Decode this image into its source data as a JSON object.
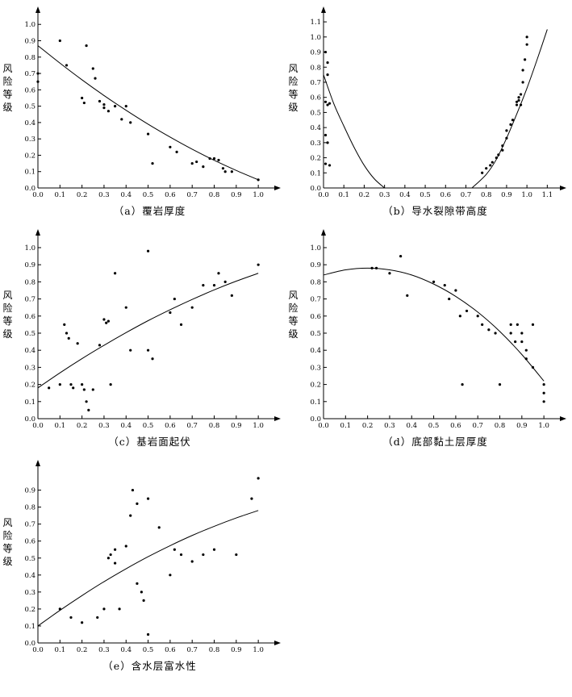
{
  "ticks_01": [
    "0.0",
    "0.1",
    "0.2",
    "0.3",
    "0.4",
    "0.5",
    "0.6",
    "0.7",
    "0.8",
    "0.9",
    "1.0"
  ],
  "chart_data": [
    {
      "type": "scatter",
      "caption": "（a）覆岩厚度",
      "ylabel": "风险等级",
      "x_ticks": [
        "0.0",
        "0.1",
        "0.2",
        "0.3",
        "0.4",
        "0.5",
        "0.6",
        "0.7",
        "0.8",
        "0.9",
        "1.0"
      ],
      "y_ticks": [
        "0.0",
        "0.1",
        "0.2",
        "0.3",
        "0.4",
        "0.5",
        "0.6",
        "0.7",
        "0.8",
        "0.9",
        "1.0"
      ],
      "xlim": [
        0,
        1.08
      ],
      "ylim": [
        0,
        1.08
      ],
      "grid": false,
      "points": [
        [
          0.0,
          0.65
        ],
        [
          0.0,
          0.7
        ],
        [
          0.1,
          0.9
        ],
        [
          0.13,
          0.75
        ],
        [
          0.22,
          0.87
        ],
        [
          0.25,
          0.73
        ],
        [
          0.26,
          0.67
        ],
        [
          0.2,
          0.55
        ],
        [
          0.21,
          0.52
        ],
        [
          0.28,
          0.53
        ],
        [
          0.3,
          0.51
        ],
        [
          0.3,
          0.49
        ],
        [
          0.32,
          0.47
        ],
        [
          0.35,
          0.5
        ],
        [
          0.4,
          0.5
        ],
        [
          0.38,
          0.42
        ],
        [
          0.42,
          0.4
        ],
        [
          0.5,
          0.33
        ],
        [
          0.52,
          0.15
        ],
        [
          0.6,
          0.25
        ],
        [
          0.63,
          0.22
        ],
        [
          0.7,
          0.15
        ],
        [
          0.72,
          0.16
        ],
        [
          0.75,
          0.13
        ],
        [
          0.78,
          0.18
        ],
        [
          0.8,
          0.18
        ],
        [
          0.82,
          0.17
        ],
        [
          0.84,
          0.12
        ],
        [
          0.85,
          0.1
        ],
        [
          0.88,
          0.1
        ],
        [
          1.0,
          0.05
        ]
      ],
      "curves": [
        [
          [
            0,
            0.87
          ],
          [
            0.1,
            0.763
          ],
          [
            0.2,
            0.661
          ],
          [
            0.3,
            0.565
          ],
          [
            0.4,
            0.475
          ],
          [
            0.5,
            0.39
          ],
          [
            0.6,
            0.311
          ],
          [
            0.7,
            0.237
          ],
          [
            0.8,
            0.169
          ],
          [
            0.9,
            0.107
          ],
          [
            1.0,
            0.05
          ]
        ]
      ]
    },
    {
      "type": "scatter",
      "caption": "（b）导水裂隙带高度",
      "ylabel": "风险等级",
      "x_ticks": [
        "0.0",
        "0.1",
        "0.2",
        "0.3",
        "0.4",
        "0.5",
        "0.6",
        "0.7",
        "0.8",
        "0.9",
        "1.0",
        "1.1"
      ],
      "y_ticks": [
        "0.0",
        "0.1",
        "0.2",
        "0.3",
        "0.4",
        "0.5",
        "0.6",
        "0.7",
        "0.8",
        "0.9",
        "1.0",
        "1.1"
      ],
      "xlim": [
        0,
        1.17
      ],
      "ylim": [
        0,
        1.17
      ],
      "grid": false,
      "points": [
        [
          0.01,
          0.9
        ],
        [
          0.02,
          0.83
        ],
        [
          0.02,
          0.75
        ],
        [
          0.01,
          0.57
        ],
        [
          0.02,
          0.55
        ],
        [
          0.03,
          0.56
        ],
        [
          0.01,
          0.35
        ],
        [
          0.02,
          0.3
        ],
        [
          0.01,
          0.16
        ],
        [
          0.03,
          0.15
        ],
        [
          0.78,
          0.1
        ],
        [
          0.8,
          0.13
        ],
        [
          0.82,
          0.15
        ],
        [
          0.83,
          0.17
        ],
        [
          0.85,
          0.2
        ],
        [
          0.86,
          0.22
        ],
        [
          0.88,
          0.25
        ],
        [
          0.88,
          0.28
        ],
        [
          0.9,
          0.33
        ],
        [
          0.9,
          0.38
        ],
        [
          0.92,
          0.42
        ],
        [
          0.93,
          0.45
        ],
        [
          0.95,
          0.55
        ],
        [
          0.95,
          0.57
        ],
        [
          0.96,
          0.58
        ],
        [
          0.96,
          0.6
        ],
        [
          0.97,
          0.55
        ],
        [
          0.97,
          0.62
        ],
        [
          0.98,
          0.7
        ],
        [
          0.98,
          0.78
        ],
        [
          0.99,
          0.85
        ],
        [
          1.0,
          0.95
        ],
        [
          1.0,
          1.0
        ]
      ],
      "curves": [
        [
          [
            0,
            0.75
          ],
          [
            0.05,
            0.56
          ],
          [
            0.1,
            0.41
          ],
          [
            0.15,
            0.27
          ],
          [
            0.2,
            0.15
          ],
          [
            0.25,
            0.06
          ],
          [
            0.3,
            0.0
          ]
        ],
        [
          [
            0.73,
            0.0
          ],
          [
            0.8,
            0.09
          ],
          [
            0.85,
            0.19
          ],
          [
            0.9,
            0.33
          ],
          [
            0.95,
            0.49
          ],
          [
            1.0,
            0.66
          ],
          [
            1.05,
            0.85
          ],
          [
            1.1,
            1.05
          ]
        ]
      ]
    },
    {
      "type": "scatter",
      "caption": "（c）基岩面起伏",
      "ylabel": "风险等级",
      "x_ticks": [
        "0.0",
        "0.1",
        "0.2",
        "0.3",
        "0.4",
        "0.5",
        "0.6",
        "0.7",
        "0.8",
        "0.9",
        "1.0"
      ],
      "y_ticks": [
        "0.0",
        "0.1",
        "0.2",
        "0.3",
        "0.4",
        "0.5",
        "0.6",
        "0.7",
        "0.8",
        "0.9",
        "1.0"
      ],
      "xlim": [
        0,
        1.08
      ],
      "ylim": [
        0,
        1.08
      ],
      "grid": false,
      "points": [
        [
          0.05,
          0.18
        ],
        [
          0.1,
          0.2
        ],
        [
          0.12,
          0.55
        ],
        [
          0.13,
          0.5
        ],
        [
          0.14,
          0.47
        ],
        [
          0.15,
          0.2
        ],
        [
          0.16,
          0.18
        ],
        [
          0.18,
          0.44
        ],
        [
          0.2,
          0.2
        ],
        [
          0.21,
          0.17
        ],
        [
          0.22,
          0.1
        ],
        [
          0.23,
          0.05
        ],
        [
          0.25,
          0.17
        ],
        [
          0.28,
          0.43
        ],
        [
          0.3,
          0.58
        ],
        [
          0.31,
          0.56
        ],
        [
          0.32,
          0.57
        ],
        [
          0.33,
          0.2
        ],
        [
          0.35,
          0.85
        ],
        [
          0.4,
          0.65
        ],
        [
          0.42,
          0.4
        ],
        [
          0.5,
          0.98
        ],
        [
          0.5,
          0.4
        ],
        [
          0.52,
          0.35
        ],
        [
          0.6,
          0.62
        ],
        [
          0.62,
          0.7
        ],
        [
          0.65,
          0.55
        ],
        [
          0.7,
          0.65
        ],
        [
          0.75,
          0.78
        ],
        [
          0.8,
          0.78
        ],
        [
          0.82,
          0.85
        ],
        [
          0.85,
          0.8
        ],
        [
          0.88,
          0.72
        ],
        [
          1.0,
          0.9
        ]
      ],
      "curves": [
        [
          [
            0,
            0.18
          ],
          [
            0.1,
            0.268
          ],
          [
            0.2,
            0.351
          ],
          [
            0.3,
            0.429
          ],
          [
            0.4,
            0.503
          ],
          [
            0.5,
            0.573
          ],
          [
            0.6,
            0.637
          ],
          [
            0.7,
            0.697
          ],
          [
            0.8,
            0.753
          ],
          [
            0.9,
            0.804
          ],
          [
            1.0,
            0.85
          ]
        ]
      ]
    },
    {
      "type": "scatter",
      "caption": "（d）底部黏土层厚度",
      "ylabel": "风险等级",
      "x_ticks": [
        "0.0",
        "0.1",
        "0.2",
        "0.3",
        "0.4",
        "0.5",
        "0.6",
        "0.7",
        "0.8",
        "0.9",
        "1.0"
      ],
      "y_ticks": [
        "0.0",
        "0.1",
        "0.2",
        "0.3",
        "0.4",
        "0.5",
        "0.6",
        "0.7",
        "0.8",
        "0.9",
        "1.0"
      ],
      "xlim": [
        0,
        1.08
      ],
      "ylim": [
        0,
        1.08
      ],
      "grid": false,
      "points": [
        [
          0.22,
          0.88
        ],
        [
          0.24,
          0.88
        ],
        [
          0.3,
          0.85
        ],
        [
          0.35,
          0.95
        ],
        [
          0.38,
          0.72
        ],
        [
          0.5,
          0.8
        ],
        [
          0.55,
          0.78
        ],
        [
          0.57,
          0.7
        ],
        [
          0.6,
          0.75
        ],
        [
          0.62,
          0.6
        ],
        [
          0.63,
          0.2
        ],
        [
          0.65,
          0.63
        ],
        [
          0.7,
          0.6
        ],
        [
          0.72,
          0.55
        ],
        [
          0.75,
          0.52
        ],
        [
          0.78,
          0.5
        ],
        [
          0.8,
          0.2
        ],
        [
          0.85,
          0.55
        ],
        [
          0.85,
          0.5
        ],
        [
          0.87,
          0.45
        ],
        [
          0.88,
          0.55
        ],
        [
          0.9,
          0.5
        ],
        [
          0.9,
          0.45
        ],
        [
          0.92,
          0.4
        ],
        [
          0.92,
          0.35
        ],
        [
          0.95,
          0.55
        ],
        [
          0.95,
          0.3
        ],
        [
          1.0,
          0.2
        ],
        [
          1.0,
          0.15
        ],
        [
          1.0,
          0.1
        ]
      ],
      "curves": [
        [
          [
            0,
            0.84
          ],
          [
            0.1,
            0.87
          ],
          [
            0.2,
            0.88
          ],
          [
            0.3,
            0.87
          ],
          [
            0.4,
            0.84
          ],
          [
            0.5,
            0.787
          ],
          [
            0.6,
            0.715
          ],
          [
            0.7,
            0.623
          ],
          [
            0.8,
            0.51
          ],
          [
            0.9,
            0.375
          ],
          [
            1.0,
            0.22
          ]
        ]
      ]
    },
    {
      "type": "scatter",
      "caption": "（e）含水层富水性",
      "ylabel": "风险等级",
      "x_ticks": [
        "0.0",
        "0.1",
        "0.2",
        "0.3",
        "0.4",
        "0.5",
        "0.6",
        "0.7",
        "0.8",
        "0.9",
        "1.0"
      ],
      "y_ticks": [
        "0.0",
        "0.1",
        "0.2",
        "0.3",
        "0.4",
        "0.5",
        "0.6",
        "0.7",
        "0.8",
        "0.9"
      ],
      "xlim": [
        0,
        1.08
      ],
      "ylim": [
        0,
        1.05
      ],
      "grid": false,
      "points": [
        [
          0.1,
          0.2
        ],
        [
          0.15,
          0.15
        ],
        [
          0.2,
          0.12
        ],
        [
          0.27,
          0.15
        ],
        [
          0.3,
          0.2
        ],
        [
          0.32,
          0.5
        ],
        [
          0.33,
          0.52
        ],
        [
          0.35,
          0.55
        ],
        [
          0.35,
          0.47
        ],
        [
          0.37,
          0.2
        ],
        [
          0.4,
          0.57
        ],
        [
          0.42,
          0.75
        ],
        [
          0.43,
          0.9
        ],
        [
          0.45,
          0.82
        ],
        [
          0.45,
          0.35
        ],
        [
          0.47,
          0.3
        ],
        [
          0.48,
          0.25
        ],
        [
          0.5,
          0.85
        ],
        [
          0.5,
          0.05
        ],
        [
          0.55,
          0.68
        ],
        [
          0.6,
          0.4
        ],
        [
          0.62,
          0.55
        ],
        [
          0.65,
          0.52
        ],
        [
          0.7,
          0.48
        ],
        [
          0.75,
          0.52
        ],
        [
          0.8,
          0.55
        ],
        [
          0.9,
          0.52
        ],
        [
          0.97,
          0.85
        ],
        [
          1.0,
          0.97
        ]
      ],
      "curves": [
        [
          [
            0,
            0.1
          ],
          [
            0.1,
            0.192
          ],
          [
            0.2,
            0.279
          ],
          [
            0.3,
            0.361
          ],
          [
            0.4,
            0.437
          ],
          [
            0.5,
            0.508
          ],
          [
            0.6,
            0.573
          ],
          [
            0.7,
            0.633
          ],
          [
            0.8,
            0.687
          ],
          [
            0.9,
            0.736
          ],
          [
            1.0,
            0.78
          ]
        ]
      ]
    }
  ]
}
